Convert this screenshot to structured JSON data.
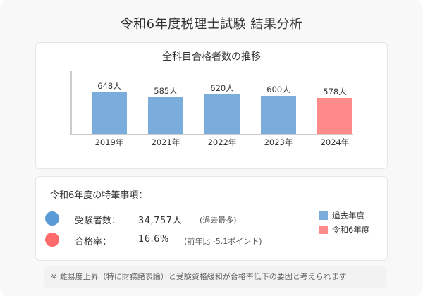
{
  "page": {
    "title": "令和6年度税理士試験 結果分析"
  },
  "chart_data": {
    "type": "bar",
    "title": "全科目合格者数の推移",
    "categories": [
      "2019年",
      "2021年",
      "2022年",
      "2023年",
      "2024年"
    ],
    "values": [
      648,
      585,
      620,
      600,
      578
    ],
    "value_labels": [
      "648人",
      "585人",
      "620人",
      "600人",
      "578人"
    ],
    "unit": "人",
    "xlabel": "",
    "ylabel": "",
    "grid": false,
    "highlight_index": 4,
    "colors": {
      "past": "#7aacdc",
      "current": "#ff8a8a",
      "axis": "#cccccc"
    },
    "legend": [
      {
        "label": "過去年度",
        "color": "#7aacdc"
      },
      {
        "label": "令和6年度",
        "color": "#ff8a8a"
      }
    ],
    "legend_position": "right-bottom"
  },
  "highlights": {
    "heading": "令和6年度の特筆事項：",
    "items": [
      {
        "label": "受験者数：",
        "value": "34,757人",
        "note": "(過去最多)",
        "color": "#5b9bd5"
      },
      {
        "label": "合格率：",
        "value": "16.6%",
        "note": "(前年比 -5.1ポイント)",
        "color": "#ff6b6b"
      }
    ]
  },
  "footnote": "※ 難易度上昇（特に財務諸表論）と受験資格緩和が合格率低下の要因と考えられます"
}
